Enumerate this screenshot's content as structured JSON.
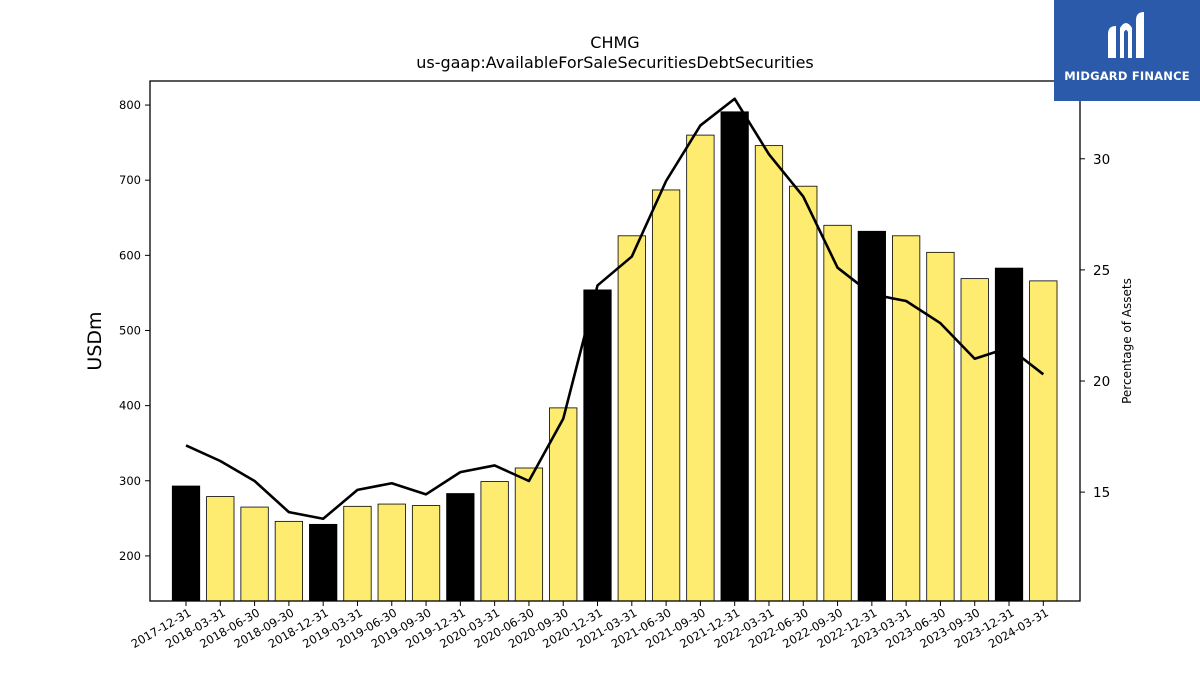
{
  "header": {
    "title": "CHMG",
    "subtitle": "us-gaap:AvailableForSaleSecuritiesDebtSecurities"
  },
  "logo": {
    "text": "MIDGARD FINANCE",
    "icon": "midgard-logo-icon",
    "background": "#2b5aab"
  },
  "chart_data": {
    "type": "bar",
    "title": "CHMG",
    "subtitle": "us-gaap:AvailableForSaleSecuritiesDebtSecurities",
    "ylabel": "USDm",
    "y2label": "Percentage of Assets",
    "ylim": [
      140,
      832
    ],
    "y2lim": [
      10.1,
      33.5
    ],
    "yticks": [
      200,
      300,
      400,
      500,
      600,
      700,
      800
    ],
    "y2ticks": [
      15,
      20,
      25,
      30
    ],
    "categories": [
      "2017-12-31",
      "2018-03-31",
      "2018-06-30",
      "2018-09-30",
      "2018-12-31",
      "2019-03-31",
      "2019-06-30",
      "2019-09-30",
      "2019-12-31",
      "2020-03-31",
      "2020-06-30",
      "2020-09-30",
      "2020-12-31",
      "2021-03-31",
      "2021-06-30",
      "2021-09-30",
      "2021-12-31",
      "2022-03-31",
      "2022-06-30",
      "2022-09-30",
      "2022-12-31",
      "2023-03-31",
      "2023-06-30",
      "2023-09-30",
      "2023-12-31",
      "2024-03-31"
    ],
    "series": [
      {
        "type": "bar",
        "axis": "left",
        "values": [
          293,
          279,
          265,
          246,
          242,
          266,
          269,
          267,
          283,
          299,
          317,
          397,
          554,
          626,
          687,
          760,
          791,
          746,
          692,
          640,
          632,
          626,
          604,
          569,
          583,
          566
        ]
      },
      {
        "type": "line",
        "axis": "right",
        "values": [
          17.1,
          16.4,
          15.5,
          14.1,
          13.8,
          15.1,
          15.4,
          14.9,
          15.9,
          16.2,
          15.5,
          18.3,
          24.3,
          25.6,
          29.0,
          31.5,
          32.7,
          30.2,
          28.3,
          25.1,
          23.9,
          23.6,
          22.6,
          21.0,
          21.5,
          20.3
        ]
      }
    ],
    "bar_colors": {
      "default": "#fdec6f",
      "year_end": "#000000"
    },
    "line_color": "#000000",
    "grid": false
  }
}
